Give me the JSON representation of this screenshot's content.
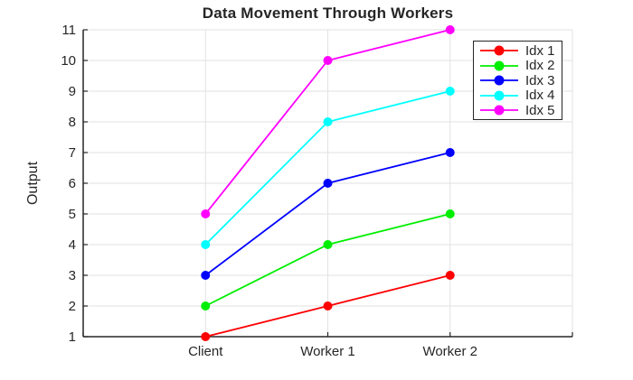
{
  "chart_data": {
    "type": "line",
    "title": "Data Movement Through Workers",
    "xlabel": "",
    "ylabel": "Output",
    "categories": [
      "Client",
      "Worker 1",
      "Worker 2"
    ],
    "category_x": [
      1,
      2,
      3
    ],
    "xlim": [
      0,
      4
    ],
    "xticks": [
      0,
      1,
      2,
      3,
      4
    ],
    "ylim": [
      1,
      11
    ],
    "yticks": [
      1,
      2,
      3,
      4,
      5,
      6,
      7,
      8,
      9,
      10,
      11
    ],
    "grid": true,
    "legend_position": "top-right-inside",
    "marker": "circle",
    "series": [
      {
        "name": "Idx 1",
        "color": "#ff0000",
        "values": [
          1,
          2,
          3
        ]
      },
      {
        "name": "Idx 2",
        "color": "#00ee00",
        "values": [
          2,
          4,
          5
        ]
      },
      {
        "name": "Idx 3",
        "color": "#0000ff",
        "values": [
          3,
          6,
          7
        ]
      },
      {
        "name": "Idx 4",
        "color": "#00ffff",
        "values": [
          4,
          8,
          9
        ]
      },
      {
        "name": "Idx 5",
        "color": "#ff00ff",
        "values": [
          5,
          10,
          11
        ]
      }
    ],
    "style": {
      "background": "#ffffff",
      "axis_color": "#262626",
      "grid_color": "#e2e2e2",
      "tick_label_color": "#262626",
      "title_color": "#262626",
      "legend_border_color": "#262626"
    }
  }
}
